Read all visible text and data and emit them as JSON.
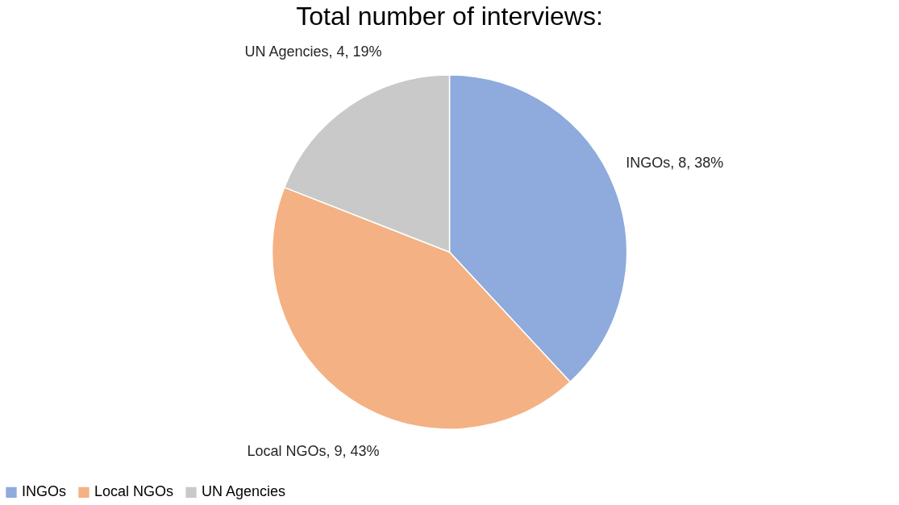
{
  "chart_data": {
    "type": "pie",
    "title": "Total number of interviews:",
    "categories": [
      "INGOs",
      "Local NGOs",
      "UN Agencies"
    ],
    "values": [
      8,
      9,
      4
    ],
    "colors": [
      "#8faadc",
      "#f4b183",
      "#c9c9c9"
    ],
    "value_labels": [
      "INGOs, 8, 38%",
      "Local NGOs, 9, 43%",
      "UN Agencies, 4, 19%"
    ],
    "legend": "bottom"
  }
}
